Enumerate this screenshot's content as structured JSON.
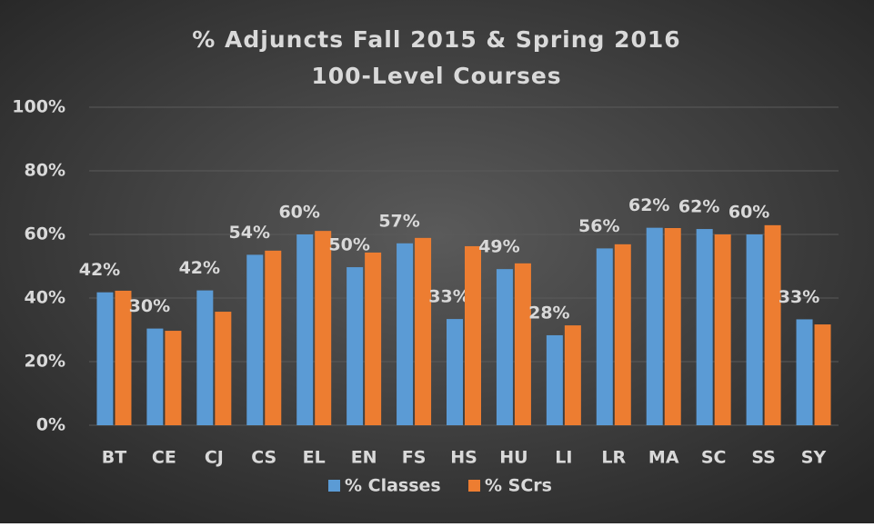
{
  "chart_data": {
    "type": "bar",
    "title": "% Adjuncts Fall 2015 & Spring 2016",
    "subtitle": "100-Level Courses",
    "categories": [
      "BT",
      "CE",
      "CJ",
      "CS",
      "EL",
      "EN",
      "FS",
      "HS",
      "HU",
      "LI",
      "LR",
      "MA",
      "SC",
      "SS",
      "SY"
    ],
    "series": [
      {
        "name": "% Classes",
        "color": "#5b9bd5",
        "values": [
          41.8,
          30.4,
          42.4,
          53.6,
          60.0,
          49.7,
          57.2,
          33.4,
          49.1,
          28.3,
          55.6,
          62.1,
          61.7,
          60.0,
          33.3
        ],
        "value_labels": [
          "42%",
          "30%",
          "42%",
          "54%",
          "60%",
          "50%",
          "57%",
          "33%",
          "49%",
          "28%",
          "56%",
          "62%",
          "62%",
          "60%",
          "33%"
        ]
      },
      {
        "name": "% SCrs",
        "color": "#ed7d31",
        "values": [
          42.3,
          29.7,
          35.7,
          54.9,
          61.1,
          54.3,
          58.9,
          56.3,
          50.9,
          31.4,
          56.9,
          62.0,
          60.0,
          62.9,
          31.7
        ]
      }
    ],
    "ylim": [
      0,
      100
    ],
    "yticks": [
      {
        "value": 0,
        "label": "0%"
      },
      {
        "value": 20,
        "label": "20%"
      },
      {
        "value": 40,
        "label": "40%"
      },
      {
        "value": 60,
        "label": "60%"
      },
      {
        "value": 80,
        "label": "80%"
      },
      {
        "value": 100,
        "label": "100%"
      }
    ],
    "grid": true,
    "legend": "bottom"
  }
}
